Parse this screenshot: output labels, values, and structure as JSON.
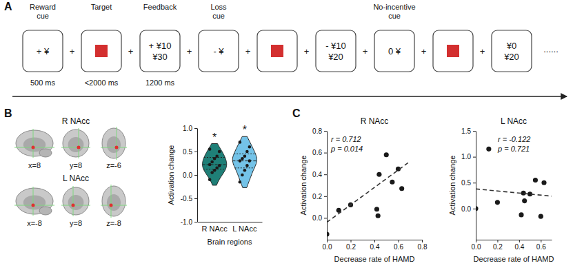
{
  "panel_labels": [
    "A",
    "B",
    "C"
  ],
  "task_diagram": {
    "frames": [
      {
        "caption": [
          "Reward",
          "cue"
        ],
        "kind": "text",
        "lines": [
          "+ ¥"
        ],
        "duration": "500 ms"
      },
      {
        "caption": [
          "Target"
        ],
        "kind": "target",
        "color": "#d32f2f",
        "duration": "<2000 ms"
      },
      {
        "caption": [
          "Feedback"
        ],
        "kind": "text",
        "lines": [
          "+ ¥10",
          "¥30"
        ],
        "duration": "1200 ms"
      },
      {
        "caption": [
          "Loss",
          "cue"
        ],
        "kind": "text",
        "lines": [
          "- ¥"
        ]
      },
      {
        "kind": "target",
        "color": "#d32f2f"
      },
      {
        "kind": "text",
        "lines": [
          "- ¥10",
          "¥20"
        ]
      },
      {
        "caption": [
          "No-incentive",
          "cue"
        ],
        "kind": "text",
        "lines": [
          "0 ¥"
        ]
      },
      {
        "kind": "target",
        "color": "#d32f2f"
      },
      {
        "kind": "text",
        "lines": [
          "¥0",
          "¥20"
        ]
      }
    ],
    "separator": "+",
    "ellipsis": "......"
  },
  "brain_images": [
    {
      "label": "R NAcc",
      "coords": [
        "x=8",
        "y=8",
        "z=-6"
      ]
    },
    {
      "label": "L NAcc",
      "coords": [
        "x=-8",
        "y=8",
        "z=-8"
      ]
    }
  ],
  "chart_data": [
    {
      "type": "violin",
      "categories": [
        "R NAcc",
        "L NAcc"
      ],
      "values": [
        [
          -0.1,
          0.05,
          0.1,
          0.15,
          0.2,
          0.22,
          0.28,
          0.35,
          0.4,
          0.5,
          0.55
        ],
        [
          -0.15,
          0.0,
          0.1,
          0.2,
          0.3,
          0.3,
          0.35,
          0.4,
          0.5,
          0.6,
          0.7
        ]
      ],
      "colors": [
        "#1f7f77",
        "#74c3e8"
      ],
      "annotations": [
        "*",
        "*"
      ],
      "x_label": "Brain regions",
      "y_label": "Activation change",
      "ylim": [
        -1,
        1
      ],
      "yticks": [
        {
          "value": -1,
          "label": "-1.0"
        },
        -0.5,
        {
          "value": 0,
          "label": "0.0"
        },
        0.5,
        {
          "value": 1,
          "label": "1.0"
        }
      ],
      "grid": false
    },
    {
      "type": "scatter",
      "title": "R NAcc",
      "x_label": "Decrease rate of HAMD",
      "y_label": "Activation change",
      "xlim": [
        0,
        0.8
      ],
      "xticks": [
        {
          "value": 0,
          "label": "0.0"
        },
        0.2,
        0.4,
        0.6,
        0.8
      ],
      "ylim": [
        -0.2,
        0.8
      ],
      "yticks": [
        {
          "value": 0,
          "label": "0.0"
        },
        0.2,
        0.4,
        0.6,
        0.8
      ],
      "annotations": [
        "r = 0.712",
        "p = 0.014"
      ],
      "grid": false,
      "series": [
        {
          "type": "scatter",
          "marker": "circle",
          "color": "#1a1a1a",
          "x": [
            0,
            0.1,
            0.2,
            0.42,
            0.43,
            0.44,
            0.5,
            0.55,
            0.6,
            0.63
          ],
          "values": [
            -0.15,
            0.07,
            0.12,
            0.08,
            0.02,
            0.4,
            0.58,
            0.33,
            0.45,
            0.27
          ]
        },
        {
          "type": "line",
          "line_style": "dashed",
          "color": "#333333",
          "x": [
            0,
            0.7
          ],
          "values": [
            -0.04,
            0.52
          ]
        }
      ]
    },
    {
      "type": "scatter",
      "title": "L NAcc",
      "x_label": "Decrease rate of HAMD",
      "y_label": "Activation change",
      "xlim": [
        0,
        0.7
      ],
      "xticks": [
        {
          "value": 0,
          "label": "0.0"
        },
        0.2,
        0.4,
        0.6
      ],
      "ylim": [
        -0.6,
        1.5
      ],
      "yticks": [
        {
          "value": 0,
          "label": "0.0"
        },
        0.5,
        {
          "value": 1,
          "label": "1.0"
        },
        1.5
      ],
      "annotations": [
        "r = -0.122",
        "p = 0.721"
      ],
      "grid": false,
      "series": [
        {
          "type": "scatter",
          "marker": "circle",
          "color": "#1a1a1a",
          "x": [
            0,
            0.12,
            0.2,
            0.42,
            0.44,
            0.45,
            0.5,
            0.55,
            0.6,
            0.63
          ],
          "values": [
            0,
            1.15,
            0.12,
            -0.12,
            0.3,
            0.15,
            0.28,
            0.55,
            -0.15,
            0.5
          ]
        },
        {
          "type": "line",
          "line_style": "dashed",
          "color": "#333333",
          "x": [
            0,
            0.7
          ],
          "values": [
            0.38,
            0.24
          ]
        }
      ]
    }
  ]
}
